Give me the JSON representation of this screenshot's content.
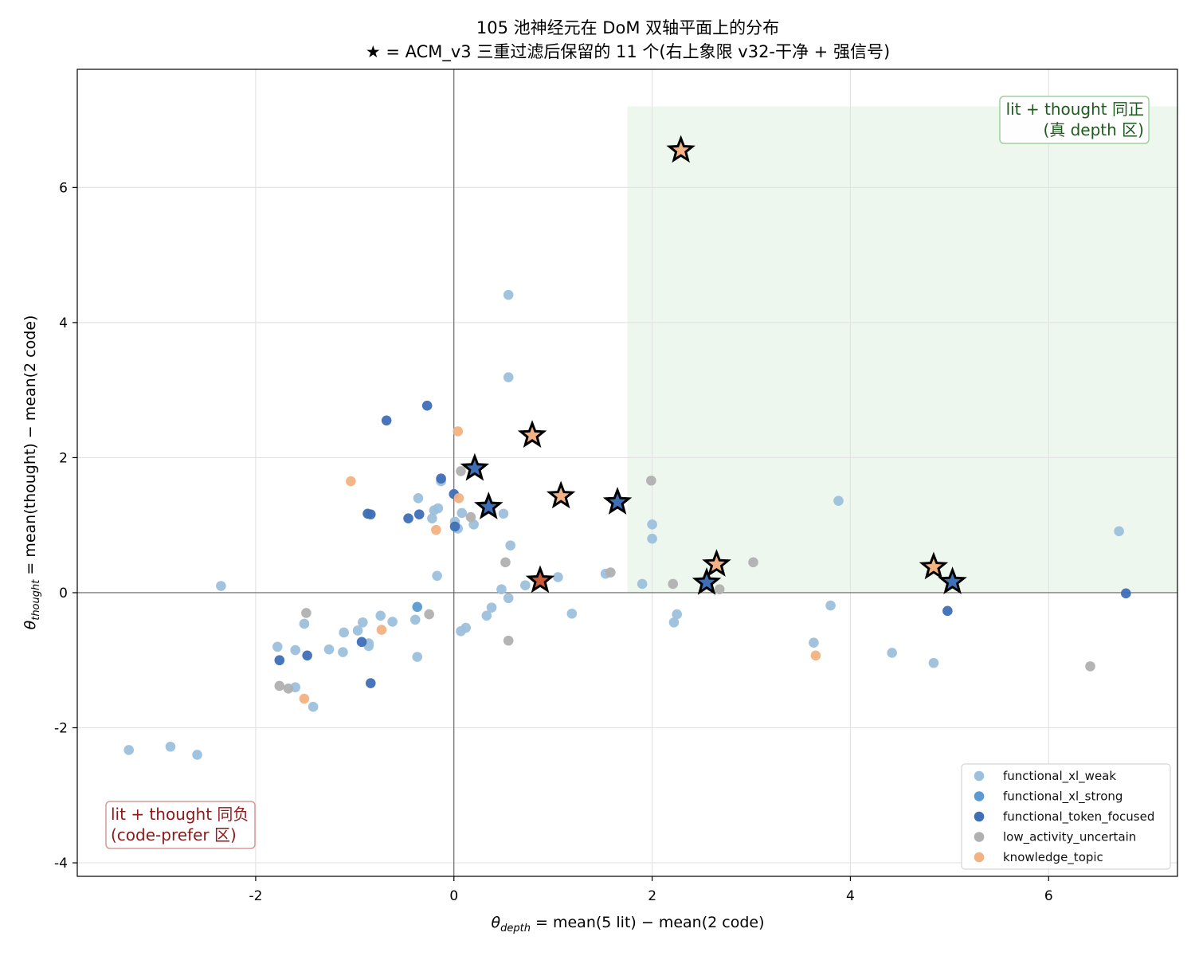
{
  "chart_data": {
    "type": "scatter",
    "title": [
      "105 池神经元在 DoM 双轴平面上的分布",
      "★ = ACM_v3 三重过滤后保留的 11 个(右上象限 v32-干净 + 强信号)"
    ],
    "xlabel": {
      "sym": "θ",
      "sub": "depth",
      "rest": " = mean(5 lit) − mean(2 code)"
    },
    "ylabel": {
      "sym": "θ",
      "sub": "thought",
      "rest": " = mean(thought) − mean(2 code)"
    },
    "xlim": [
      -3.8,
      7.3
    ],
    "ylim": [
      -4.2,
      7.75
    ],
    "xticks": [
      -2,
      0,
      2,
      4,
      6
    ],
    "yticks": [
      -4,
      -2,
      0,
      2,
      4,
      6
    ],
    "xtick_labels": [
      "-2",
      "0",
      "2",
      "4",
      "6"
    ],
    "ytick_labels": [
      "-4",
      "-2",
      "0",
      "2",
      "4",
      "6"
    ],
    "grid": true,
    "legend_position": "lower-right",
    "shaded_region": {
      "x": [
        1.75,
        7.3
      ],
      "y": [
        0,
        7.2
      ],
      "color": "#eef7ee"
    },
    "annotations": [
      {
        "id": "upper",
        "lines": [
          "lit + thought 同正",
          "(真 depth 区)"
        ],
        "color": "#1e5a1e",
        "border": "#9fd09f"
      },
      {
        "id": "lower",
        "lines": [
          "lit + thought 同负",
          "(code-prefer 区)"
        ],
        "color": "#8b1a1a",
        "border": "#d49a9a"
      }
    ],
    "series": [
      {
        "name": "functional_xl_weak",
        "color": "#9dc0dc",
        "points": [
          [
            0.55,
            4.41
          ],
          [
            0.55,
            3.19
          ],
          [
            -0.13,
            1.65
          ],
          [
            -0.36,
            1.4
          ],
          [
            -0.2,
            1.22
          ],
          [
            -0.16,
            1.25
          ],
          [
            0.08,
            1.18
          ],
          [
            0.5,
            1.17
          ],
          [
            -0.22,
            1.1
          ],
          [
            0.01,
            1.05
          ],
          [
            0.04,
            0.95
          ],
          [
            0.2,
            1.01
          ],
          [
            0.57,
            0.7
          ],
          [
            -0.17,
            0.25
          ],
          [
            1.05,
            0.23
          ],
          [
            0.72,
            0.11
          ],
          [
            0.48,
            0.05
          ],
          [
            0.55,
            -0.08
          ],
          [
            0.38,
            -0.22
          ],
          [
            0.33,
            -0.34
          ],
          [
            1.19,
            -0.31
          ],
          [
            1.53,
            0.28
          ],
          [
            1.9,
            0.13
          ],
          [
            2.0,
            1.01
          ],
          [
            2.0,
            0.8
          ],
          [
            2.25,
            -0.32
          ],
          [
            2.22,
            -0.44
          ],
          [
            3.88,
            1.36
          ],
          [
            3.8,
            -0.19
          ],
          [
            3.63,
            -0.74
          ],
          [
            4.42,
            -0.89
          ],
          [
            4.84,
            -1.04
          ],
          [
            6.71,
            0.91
          ],
          [
            0.12,
            -0.52
          ],
          [
            0.07,
            -0.57
          ],
          [
            -0.39,
            -0.4
          ],
          [
            -0.62,
            -0.43
          ],
          [
            -0.74,
            -0.34
          ],
          [
            -0.92,
            -0.44
          ],
          [
            -0.97,
            -0.56
          ],
          [
            -0.86,
            -0.75
          ],
          [
            -0.86,
            -0.79
          ],
          [
            -1.11,
            -0.59
          ],
          [
            -1.12,
            -0.88
          ],
          [
            -1.26,
            -0.84
          ],
          [
            -1.51,
            -0.46
          ],
          [
            -1.6,
            -0.85
          ],
          [
            -1.78,
            -0.8
          ],
          [
            -1.6,
            -1.4
          ],
          [
            -1.42,
            -1.69
          ],
          [
            -0.37,
            -0.95
          ],
          [
            -2.35,
            0.1
          ],
          [
            -3.28,
            -2.33
          ],
          [
            -2.86,
            -2.28
          ],
          [
            -2.59,
            -2.4
          ]
        ]
      },
      {
        "name": "functional_xl_strong",
        "color": "#5b9bd0",
        "points": [
          [
            -0.37,
            -0.21
          ]
        ]
      },
      {
        "name": "functional_token_focused",
        "color": "#3f6fb6",
        "points": [
          [
            -0.27,
            2.77
          ],
          [
            -0.68,
            2.55
          ],
          [
            -0.13,
            1.69
          ],
          [
            0.0,
            1.46
          ],
          [
            -0.87,
            1.17
          ],
          [
            -0.84,
            1.16
          ],
          [
            -0.35,
            1.16
          ],
          [
            -0.46,
            1.1
          ],
          [
            0.01,
            0.98
          ],
          [
            -0.93,
            -0.73
          ],
          [
            -1.76,
            -1.0
          ],
          [
            -1.48,
            -0.93
          ],
          [
            -0.84,
            -1.34
          ],
          [
            4.98,
            -0.27
          ],
          [
            6.78,
            -0.01
          ]
        ]
      },
      {
        "name": "low_activity_uncertain",
        "color": "#b0b0b0",
        "points": [
          [
            0.07,
            1.8
          ],
          [
            0.17,
            1.12
          ],
          [
            0.52,
            0.45
          ],
          [
            0.55,
            -0.71
          ],
          [
            -0.25,
            -0.32
          ],
          [
            -1.49,
            -0.3
          ],
          [
            -1.76,
            -1.38
          ],
          [
            -1.67,
            -1.42
          ],
          [
            1.58,
            0.3
          ],
          [
            1.99,
            1.66
          ],
          [
            2.21,
            0.13
          ],
          [
            2.68,
            0.05
          ],
          [
            3.02,
            0.45
          ],
          [
            6.42,
            -1.09
          ]
        ]
      },
      {
        "name": "knowledge_topic",
        "color": "#f2b283",
        "points": [
          [
            0.04,
            2.39
          ],
          [
            -1.04,
            1.65
          ],
          [
            0.05,
            1.4
          ],
          [
            -0.18,
            0.93
          ],
          [
            -0.73,
            -0.55
          ],
          [
            -1.51,
            -1.57
          ],
          [
            3.65,
            -0.93
          ]
        ]
      }
    ],
    "stars": [
      {
        "x": 2.29,
        "y": 6.55,
        "color": "#f2b283"
      },
      {
        "x": 0.79,
        "y": 2.33,
        "color": "#f2b283"
      },
      {
        "x": 0.21,
        "y": 1.84,
        "color": "#3f6fb6"
      },
      {
        "x": 1.08,
        "y": 1.43,
        "color": "#f2b283"
      },
      {
        "x": 1.65,
        "y": 1.34,
        "color": "#3f6fb6"
      },
      {
        "x": 0.35,
        "y": 1.27,
        "color": "#3f6fb6"
      },
      {
        "x": 0.87,
        "y": 0.18,
        "color": "#c95a3a"
      },
      {
        "x": 2.65,
        "y": 0.42,
        "color": "#f2b283"
      },
      {
        "x": 2.55,
        "y": 0.15,
        "color": "#3f6fb6"
      },
      {
        "x": 4.84,
        "y": 0.38,
        "color": "#f2b283"
      },
      {
        "x": 5.03,
        "y": 0.16,
        "color": "#3f6fb6"
      }
    ]
  }
}
